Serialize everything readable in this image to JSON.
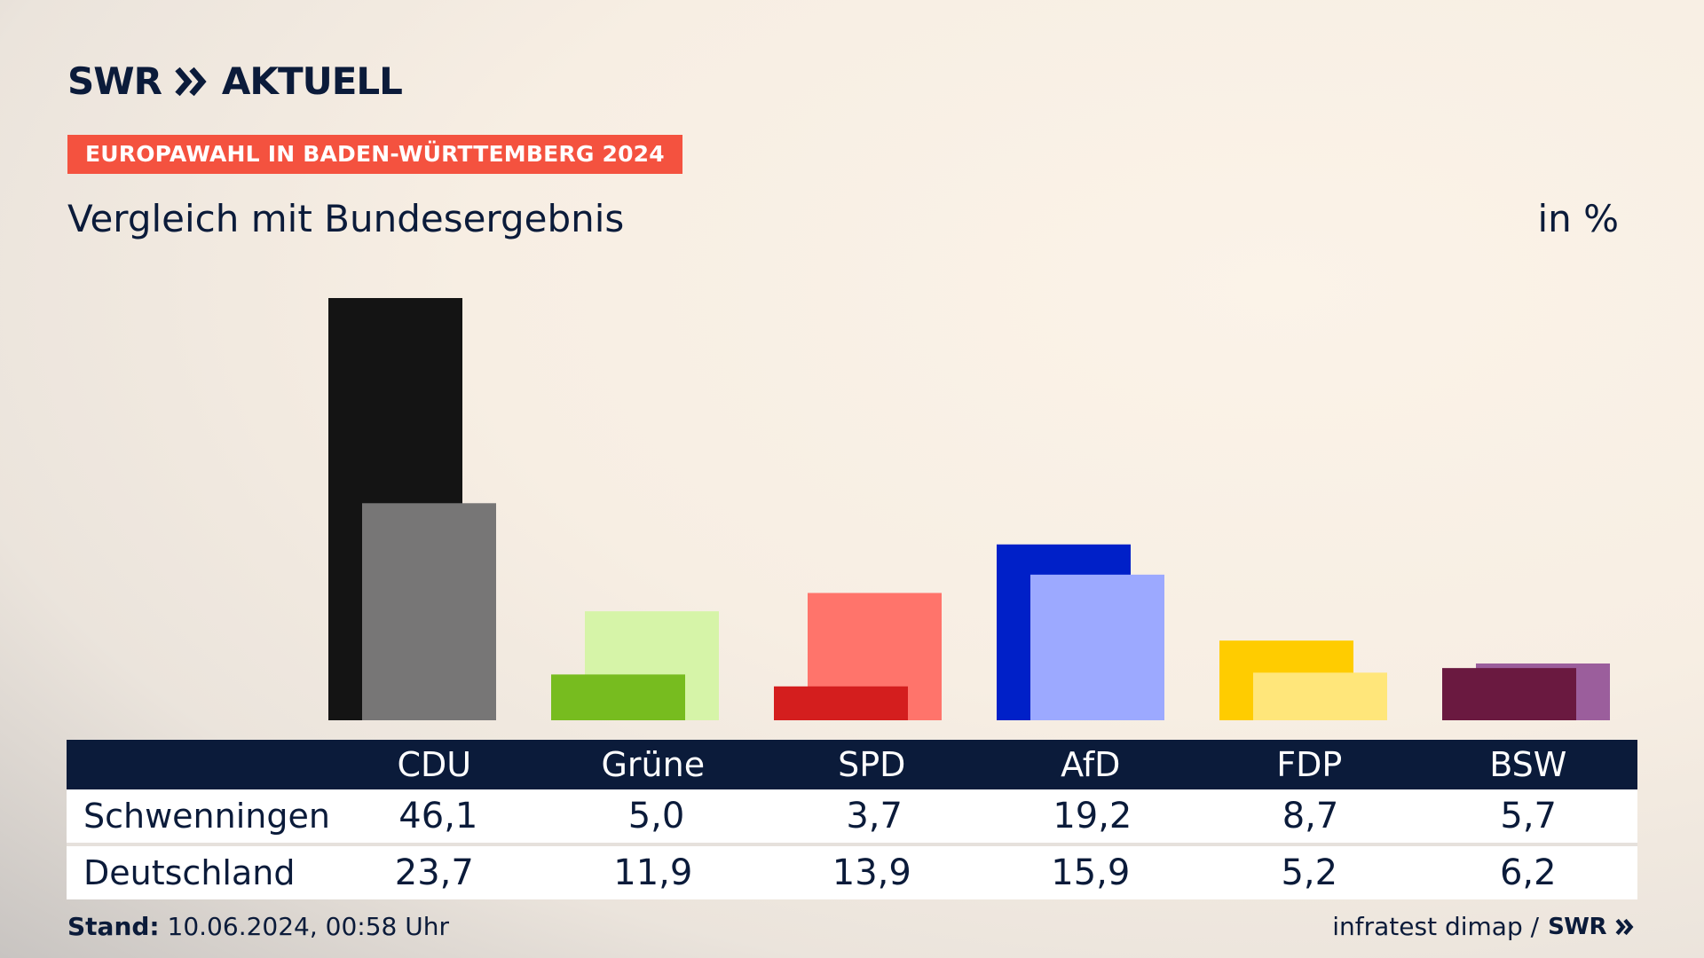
{
  "brand": {
    "logo_left": "SWR",
    "logo_right": "AKTUELL"
  },
  "tag": "EUROPAWAHL IN BADEN-WÜRTTEMBERG 2024",
  "subtitle": "Vergleich mit Bundesergebnis",
  "unit": "in %",
  "footer": {
    "stand_label": "Stand:",
    "stand_value": "10.06.2024, 00:58 Uhr",
    "source": "infratest dimap /",
    "source_logo": "SWR"
  },
  "chart_data": {
    "type": "bar",
    "categories": [
      "CDU",
      "Grüne",
      "SPD",
      "AfD",
      "FDP",
      "BSW"
    ],
    "series": [
      {
        "name": "Schwenningen",
        "values": [
          46.1,
          5.0,
          3.7,
          19.2,
          8.7,
          5.7
        ]
      },
      {
        "name": "Deutschland",
        "values": [
          23.7,
          11.9,
          13.9,
          15.9,
          5.2,
          6.2
        ]
      }
    ],
    "ylim": [
      0,
      46.1
    ],
    "colors": {
      "primary": [
        "#141414",
        "#77bc1f",
        "#d41e1e",
        "#0020c8",
        "#ffcc00",
        "#6a1940"
      ],
      "secondary": [
        "#777676",
        "#d6f4a8",
        "#ff746b",
        "#9ca9ff",
        "#ffe67a",
        "#9b5e9c"
      ]
    },
    "table": {
      "header": [
        "CDU",
        "Grüne",
        "SPD",
        "AfD",
        "FDP",
        "BSW"
      ],
      "rows": [
        {
          "label": "Schwenningen",
          "values": [
            "46,1",
            "5,0",
            "3,7",
            "19,2",
            "8,7",
            "5,7"
          ]
        },
        {
          "label": "Deutschland",
          "values": [
            "23,7",
            "11,9",
            "13,9",
            "15,9",
            "5,2",
            "6,2"
          ]
        }
      ]
    }
  }
}
